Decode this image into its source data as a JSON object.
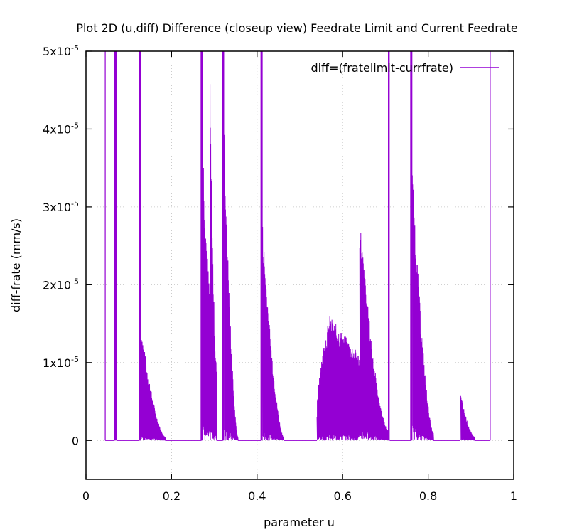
{
  "chart_data": {
    "type": "line",
    "title": "Plot 2D (u,diff) Difference (closeup view) Feedrate Limit and Current Feedrate",
    "xlabel": "parameter u",
    "ylabel": "diff-frate (mm/s)",
    "xlim": [
      0,
      1
    ],
    "ylim": [
      -5e-06,
      5e-05
    ],
    "x_ticks": [
      {
        "value": 0,
        "label": "0"
      },
      {
        "value": 0.2,
        "label": "0.2"
      },
      {
        "value": 0.4,
        "label": "0.4"
      },
      {
        "value": 0.6,
        "label": "0.6"
      },
      {
        "value": 0.8,
        "label": "0.8"
      },
      {
        "value": 1,
        "label": "1"
      }
    ],
    "y_ticks": [
      {
        "value": 0,
        "mant": "0",
        "exp": ""
      },
      {
        "value": 1e-05,
        "mant": "1x10",
        "exp": "-5"
      },
      {
        "value": 2e-05,
        "mant": "2x10",
        "exp": "-5"
      },
      {
        "value": 3e-05,
        "mant": "3x10",
        "exp": "-5"
      },
      {
        "value": 4e-05,
        "mant": "4x10",
        "exp": "-5"
      },
      {
        "value": 5e-05,
        "mant": "5x10",
        "exp": "-5"
      }
    ],
    "grid": true,
    "legend_position": "top-right",
    "series": [
      {
        "name": "diff=(fratelimit-currfrate)",
        "color": "#9400d3",
        "segments": [
          {
            "type": "flat",
            "x": [
              0.045,
              0.065
            ]
          },
          {
            "type": "spike",
            "x": [
              0.066,
              0.072
            ],
            "y": 6e-05
          },
          {
            "type": "flat",
            "x": [
              0.072,
              0.125
            ]
          },
          {
            "type": "spike",
            "x": [
              0.123,
              0.128
            ],
            "y": 6e-05
          },
          {
            "type": "decay",
            "x": [
              0.128,
              0.185
            ],
            "peak": 1.5e-05,
            "end": 5e-07
          },
          {
            "type": "flat",
            "x": [
              0.185,
              0.27
            ]
          },
          {
            "type": "spike",
            "x": [
              0.268,
              0.273
            ],
            "y": 6e-05
          },
          {
            "type": "decay",
            "x": [
              0.273,
              0.29
            ],
            "peak": 4e-05,
            "end": 2e-05
          },
          {
            "type": "decay",
            "x": [
              0.29,
              0.305
            ],
            "peak": 4.6e-05,
            "end": 1e-05
          },
          {
            "type": "flat",
            "x": [
              0.305,
              0.32
            ]
          },
          {
            "type": "spike",
            "x": [
              0.318,
              0.323
            ],
            "y": 6e-05
          },
          {
            "type": "decay",
            "x": [
              0.323,
              0.355
            ],
            "peak": 4e-05,
            "end": 5e-07
          },
          {
            "type": "flat",
            "x": [
              0.355,
              0.41
            ]
          },
          {
            "type": "spike",
            "x": [
              0.408,
              0.413
            ],
            "y": 6e-05
          },
          {
            "type": "decay",
            "x": [
              0.413,
              0.462
            ],
            "peak": 2.8e-05,
            "end": 5e-07
          },
          {
            "type": "flat",
            "x": [
              0.462,
              0.54
            ]
          },
          {
            "type": "hump",
            "x": [
              0.54,
              0.64
            ],
            "start": 3e-06,
            "peak": 1.6e-05,
            "peak_x": 0.57,
            "end": 1.1e-05
          },
          {
            "type": "decay",
            "x": [
              0.64,
              0.705
            ],
            "peak": 2.9e-05,
            "end": 1.5e-06
          },
          {
            "type": "spike",
            "x": [
              0.706,
              0.71
            ],
            "y": 6e-05
          },
          {
            "type": "flat",
            "x": [
              0.71,
              0.76
            ]
          },
          {
            "type": "spike",
            "x": [
              0.758,
              0.763
            ],
            "y": 6e-05
          },
          {
            "type": "decay",
            "x": [
              0.763,
              0.812
            ],
            "peak": 3.5e-05,
            "end": 1e-06
          },
          {
            "type": "flat",
            "x": [
              0.812,
              0.875
            ]
          },
          {
            "type": "decay",
            "x": [
              0.876,
              0.908
            ],
            "peak": 6e-06,
            "end": 5e-07
          },
          {
            "type": "flat",
            "x": [
              0.908,
              0.945
            ]
          }
        ],
        "boundary": {
          "left_x": 0.045,
          "right_x": 0.945
        }
      }
    ]
  }
}
